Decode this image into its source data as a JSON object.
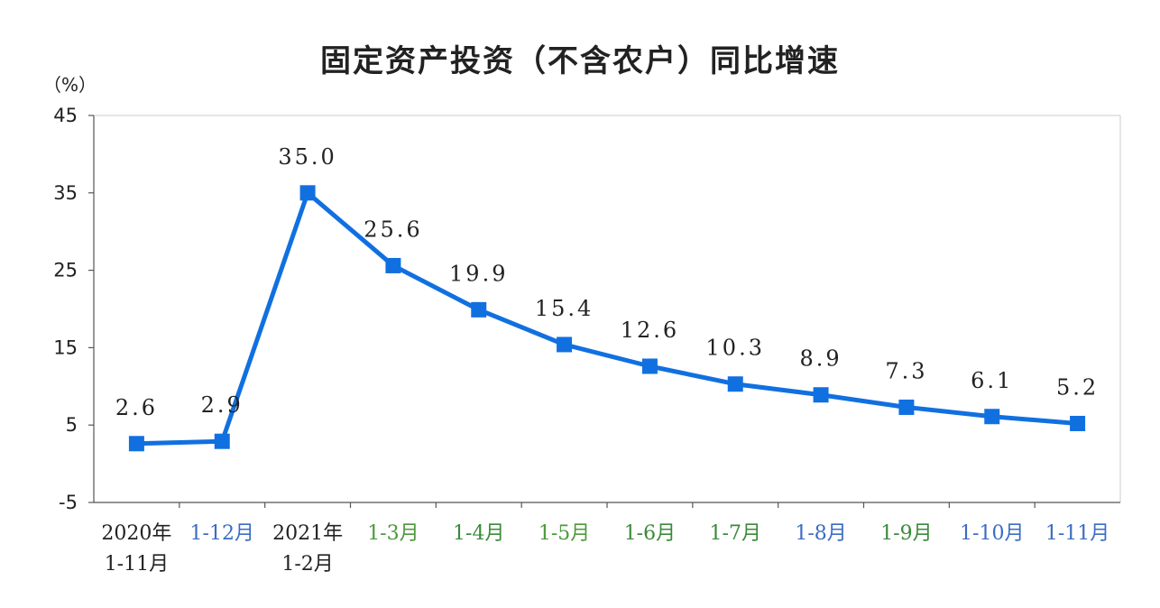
{
  "chart_data": {
    "type": "line",
    "title": "固定资产投资（不含农户）同比增速",
    "ylabel": "（%）",
    "xlabel": "",
    "ylim": [
      -5,
      45
    ],
    "yticks": [
      -5,
      5,
      15,
      25,
      35,
      45
    ],
    "grid": false,
    "categories": [
      [
        "2020年",
        "1-11月"
      ],
      [
        "1-12月"
      ],
      [
        "2021年",
        "1-2月"
      ],
      [
        "1-3月"
      ],
      [
        "1-4月"
      ],
      [
        "1-5月"
      ],
      [
        "1-6月"
      ],
      [
        "1-7月"
      ],
      [
        "1-8月"
      ],
      [
        "1-9月"
      ],
      [
        "1-10月"
      ],
      [
        "1-11月"
      ]
    ],
    "series": [
      {
        "name": "固定资产投资（不含农户）同比增速",
        "values": [
          2.6,
          2.9,
          35.0,
          25.6,
          19.9,
          15.4,
          12.6,
          10.3,
          8.9,
          7.3,
          6.1,
          5.2
        ],
        "labels": [
          "2.6",
          "2.9",
          "35.0",
          "25.6",
          "19.9",
          "15.4",
          "12.6",
          "10.3",
          "8.9",
          "7.3",
          "6.1",
          "5.2"
        ]
      }
    ],
    "colors": {
      "line": "#1170e0",
      "marker": "#1170e0",
      "axis": "#555555",
      "frame": "#cccccc",
      "xtick_text": [
        "#222222",
        "#3b6cc4",
        "#222222",
        "#4a9a3a",
        "#3a8a3a",
        "#4a9a3a",
        "#3a8a3a",
        "#3a8a3a",
        "#3b6cc4",
        "#3a8a3a",
        "#3b6cc4",
        "#3b6cc4"
      ]
    }
  }
}
